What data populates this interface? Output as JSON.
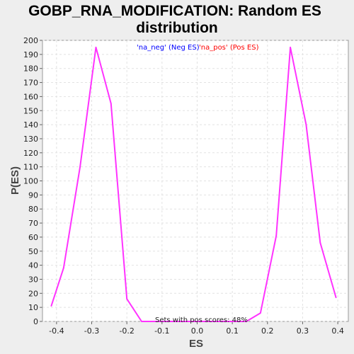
{
  "chart_data": {
    "type": "line",
    "title_line1": "GOBP_RNA_MODIFICATION: Random ES",
    "title_line2": "distribution",
    "xlabel": "ES",
    "ylabel": "P(ES)",
    "xlim": [
      -0.44,
      0.43
    ],
    "ylim": [
      0,
      200
    ],
    "x_ticks": [
      "-0.4",
      "-0.3",
      "-0.2",
      "-0.1",
      "0.0",
      "0.1",
      "0.2",
      "0.3",
      "0.4"
    ],
    "y_ticks": [
      "0",
      "10",
      "20",
      "30",
      "40",
      "50",
      "60",
      "70",
      "80",
      "90",
      "100",
      "110",
      "120",
      "130",
      "140",
      "150",
      "160",
      "170",
      "180",
      "190",
      "200"
    ],
    "grid": true,
    "legend": {
      "placement": "top",
      "entries": [
        {
          "label": "'na_neg' (Neg ES)",
          "color": "#0000ff"
        },
        {
          "label": "'na_pos' (Pos ES)",
          "color": "#ff0000"
        }
      ]
    },
    "annotation": "Sets with pos scores: 48%",
    "series": [
      {
        "color": "#ff33ff",
        "x": [
          -0.415,
          -0.38,
          -0.333,
          -0.288,
          -0.245,
          -0.2,
          -0.158,
          -0.11,
          -0.06,
          0.0,
          0.06,
          0.1,
          0.14,
          0.18,
          0.225,
          0.265,
          0.31,
          0.35,
          0.395
        ],
        "y": [
          11,
          38,
          110,
          195,
          155,
          16,
          0,
          0,
          0,
          0,
          0,
          0,
          0,
          6,
          61,
          195,
          140,
          56,
          17
        ]
      }
    ]
  }
}
